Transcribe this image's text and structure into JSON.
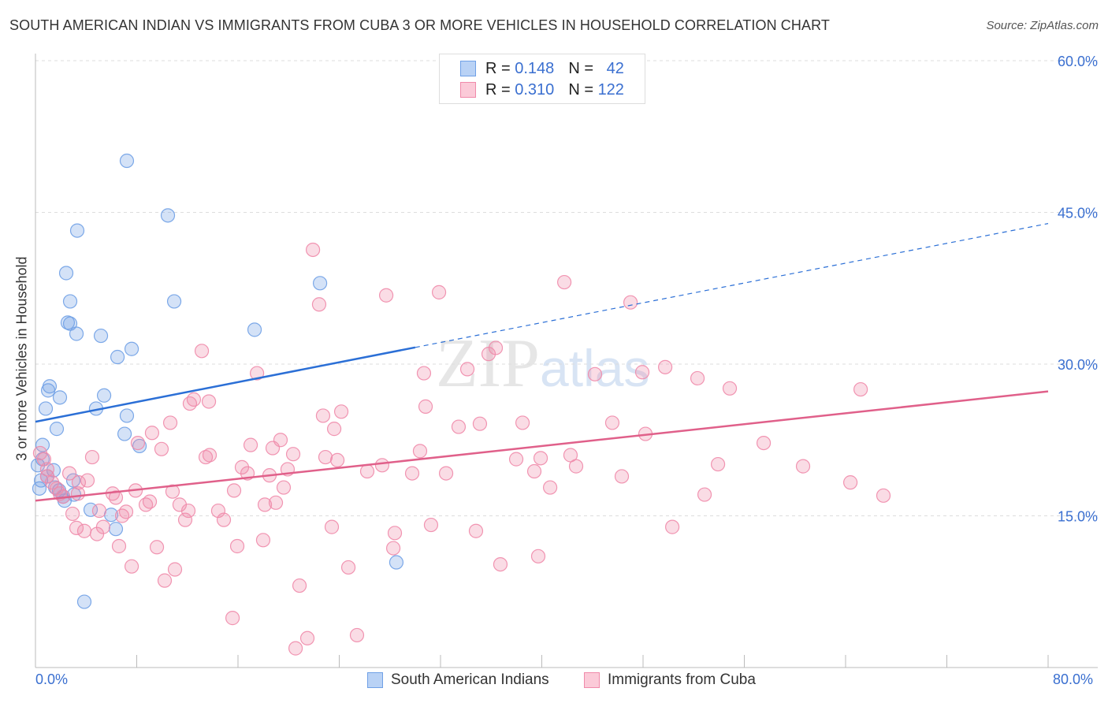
{
  "title": "SOUTH AMERICAN INDIAN VS IMMIGRANTS FROM CUBA 3 OR MORE VEHICLES IN HOUSEHOLD CORRELATION CHART",
  "source": "Source: ZipAtlas.com",
  "watermark": "ZIPatlas",
  "chart_data": {
    "type": "scatter",
    "title": "SOUTH AMERICAN INDIAN VS IMMIGRANTS FROM CUBA 3 OR MORE VEHICLES IN HOUSEHOLD CORRELATION CHART",
    "xlabel": "",
    "ylabel": "3 or more Vehicles in Household",
    "xlim": [
      0,
      80
    ],
    "ylim": [
      0,
      60.7
    ],
    "x_tick_labels": [
      "0.0%",
      "80.0%"
    ],
    "y_ticks": [
      15,
      30,
      45,
      60
    ],
    "y_tick_labels": [
      "15.0%",
      "30.0%",
      "45.0%",
      "60.0%"
    ],
    "grid": true,
    "legend_placement": "top-center",
    "series": [
      {
        "name": "South American Indians",
        "color": "#6fa0e6",
        "line_color": "#2b6fd6",
        "R": "0.148",
        "N": "42",
        "trend": {
          "x0": 0,
          "y0": 24.3,
          "x1": 80,
          "y1": 43.9,
          "solid_until": 30
        },
        "points": [
          [
            7.22,
            50.1
          ],
          [
            10.46,
            44.7
          ],
          [
            3.3,
            43.2
          ],
          [
            2.43,
            39.0
          ],
          [
            22.48,
            38.0
          ],
          [
            2.74,
            36.2
          ],
          [
            10.96,
            36.2
          ],
          [
            2.55,
            34.1
          ],
          [
            2.74,
            34.0
          ],
          [
            3.24,
            33.0
          ],
          [
            17.31,
            33.4
          ],
          [
            5.17,
            32.8
          ],
          [
            7.6,
            31.5
          ],
          [
            6.48,
            30.7
          ],
          [
            1.12,
            27.8
          ],
          [
            1.0,
            27.4
          ],
          [
            1.93,
            26.7
          ],
          [
            5.42,
            26.9
          ],
          [
            4.79,
            25.6
          ],
          [
            0.81,
            25.6
          ],
          [
            7.22,
            24.9
          ],
          [
            1.68,
            23.6
          ],
          [
            7.04,
            23.1
          ],
          [
            8.22,
            21.9
          ],
          [
            0.56,
            22.0
          ],
          [
            0.56,
            20.6
          ],
          [
            1.43,
            19.5
          ],
          [
            0.93,
            18.9
          ],
          [
            2.99,
            18.5
          ],
          [
            1.56,
            17.8
          ],
          [
            2.18,
            16.9
          ],
          [
            3.05,
            17.1
          ],
          [
            2.3,
            16.5
          ],
          [
            4.36,
            15.6
          ],
          [
            5.98,
            15.1
          ],
          [
            6.35,
            13.7
          ],
          [
            28.51,
            10.4
          ],
          [
            3.86,
            6.5
          ],
          [
            0.31,
            17.7
          ],
          [
            0.19,
            20.0
          ],
          [
            0.44,
            18.5
          ],
          [
            1.87,
            17.5
          ]
        ]
      },
      {
        "name": "Immigrants from Cuba",
        "color": "#f08aaa",
        "line_color": "#e0608a",
        "R": "0.310",
        "N": "122",
        "trend": {
          "x0": 0,
          "y0": 16.5,
          "x1": 80,
          "y1": 27.3,
          "solid_until": 80
        },
        "points": [
          [
            21.92,
            41.3
          ],
          [
            41.78,
            38.1
          ],
          [
            22.41,
            35.9
          ],
          [
            27.71,
            36.8
          ],
          [
            31.88,
            37.1
          ],
          [
            47.01,
            36.1
          ],
          [
            13.14,
            31.3
          ],
          [
            36.36,
            31.6
          ],
          [
            35.8,
            31.0
          ],
          [
            17.5,
            29.1
          ],
          [
            30.69,
            29.1
          ],
          [
            34.12,
            29.5
          ],
          [
            44.2,
            29.0
          ],
          [
            47.94,
            29.2
          ],
          [
            49.75,
            29.7
          ],
          [
            52.3,
            28.6
          ],
          [
            54.85,
            27.6
          ],
          [
            65.19,
            27.5
          ],
          [
            12.51,
            26.5
          ],
          [
            13.7,
            26.3
          ],
          [
            12.2,
            26.1
          ],
          [
            30.82,
            25.8
          ],
          [
            24.16,
            25.3
          ],
          [
            22.72,
            24.9
          ],
          [
            10.65,
            24.2
          ],
          [
            23.6,
            23.6
          ],
          [
            33.43,
            23.8
          ],
          [
            35.11,
            24.1
          ],
          [
            38.48,
            24.2
          ],
          [
            45.57,
            24.2
          ],
          [
            9.21,
            23.2
          ],
          [
            48.19,
            23.1
          ],
          [
            8.09,
            22.2
          ],
          [
            57.53,
            22.2
          ],
          [
            17.0,
            22.0
          ],
          [
            19.36,
            22.5
          ],
          [
            9.96,
            21.6
          ],
          [
            18.74,
            21.7
          ],
          [
            20.36,
            21.1
          ],
          [
            4.48,
            20.8
          ],
          [
            13.76,
            21.0
          ],
          [
            13.45,
            20.8
          ],
          [
            22.91,
            20.8
          ],
          [
            23.85,
            20.5
          ],
          [
            30.38,
            21.4
          ],
          [
            37.98,
            20.6
          ],
          [
            39.91,
            20.7
          ],
          [
            42.27,
            21.0
          ],
          [
            42.71,
            19.9
          ],
          [
            27.39,
            20.0
          ],
          [
            16.31,
            19.8
          ],
          [
            19.92,
            19.6
          ],
          [
            16.75,
            19.2
          ],
          [
            18.49,
            19.0
          ],
          [
            26.21,
            19.4
          ],
          [
            29.76,
            19.2
          ],
          [
            32.44,
            19.2
          ],
          [
            39.41,
            19.4
          ],
          [
            46.32,
            18.9
          ],
          [
            53.92,
            20.1
          ],
          [
            60.64,
            19.9
          ],
          [
            64.38,
            18.3
          ],
          [
            0.37,
            21.2
          ],
          [
            0.68,
            20.6
          ],
          [
            2.68,
            19.2
          ],
          [
            3.42,
            18.3
          ],
          [
            4.11,
            18.5
          ],
          [
            0.93,
            18.9
          ],
          [
            1.68,
            17.7
          ],
          [
            1.93,
            17.2
          ],
          [
            3.36,
            17.2
          ],
          [
            6.1,
            17.2
          ],
          [
            6.35,
            16.8
          ],
          [
            7.91,
            17.5
          ],
          [
            10.83,
            17.4
          ],
          [
            15.69,
            17.5
          ],
          [
            19.61,
            17.8
          ],
          [
            66.99,
            17.0
          ],
          [
            52.86,
            17.1
          ],
          [
            40.66,
            17.8
          ],
          [
            9.03,
            16.4
          ],
          [
            8.72,
            16.1
          ],
          [
            11.39,
            16.1
          ],
          [
            18.12,
            16.1
          ],
          [
            18.99,
            16.3
          ],
          [
            2.93,
            15.2
          ],
          [
            5.04,
            15.5
          ],
          [
            12.08,
            15.5
          ],
          [
            14.44,
            15.5
          ],
          [
            6.85,
            15.0
          ],
          [
            14.88,
            14.6
          ],
          [
            7.16,
            15.4
          ],
          [
            3.24,
            13.8
          ],
          [
            5.35,
            13.9
          ],
          [
            3.86,
            13.5
          ],
          [
            4.86,
            13.2
          ],
          [
            11.83,
            14.6
          ],
          [
            23.41,
            13.9
          ],
          [
            28.39,
            13.3
          ],
          [
            31.25,
            14.1
          ],
          [
            34.8,
            13.5
          ],
          [
            50.31,
            13.9
          ],
          [
            6.6,
            12.0
          ],
          [
            9.59,
            11.9
          ],
          [
            15.94,
            12.0
          ],
          [
            17.99,
            12.6
          ],
          [
            28.27,
            11.8
          ],
          [
            7.6,
            10.0
          ],
          [
            11.02,
            9.7
          ],
          [
            24.72,
            9.9
          ],
          [
            36.73,
            10.2
          ],
          [
            39.72,
            11.0
          ],
          [
            10.21,
            8.6
          ],
          [
            20.86,
            8.1
          ],
          [
            15.57,
            4.9
          ],
          [
            21.48,
            2.9
          ],
          [
            20.55,
            1.9
          ],
          [
            25.4,
            3.2
          ],
          [
            0.93,
            19.6
          ],
          [
            1.31,
            18.3
          ],
          [
            2.18,
            16.9
          ]
        ]
      }
    ]
  },
  "legend": {
    "r_label": "R =",
    "n_label": "N ="
  }
}
